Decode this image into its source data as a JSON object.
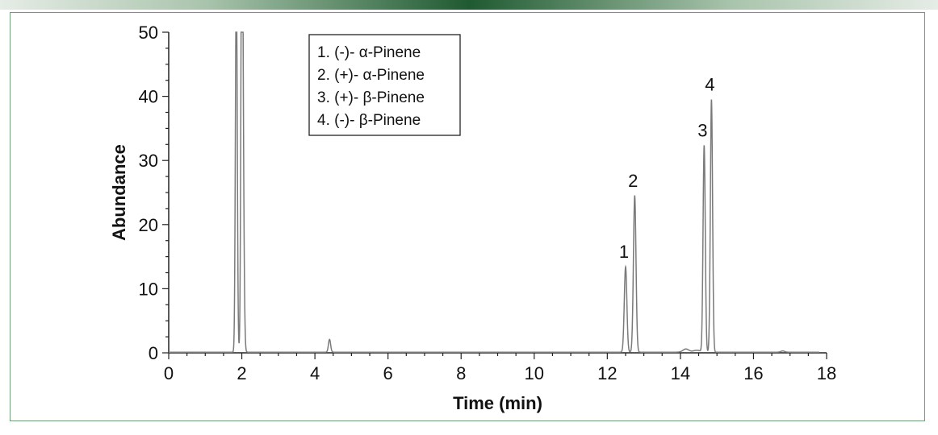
{
  "chart_data": {
    "type": "line",
    "title": "",
    "xlabel": "Time (min)",
    "ylabel": "Abundance",
    "xlim": [
      0,
      18
    ],
    "ylim": [
      0,
      50
    ],
    "x_ticks": [
      0,
      2,
      4,
      6,
      8,
      10,
      12,
      14,
      16,
      18
    ],
    "y_ticks": [
      0,
      10,
      20,
      30,
      40,
      50
    ],
    "grid": false,
    "legend_position": "top-center",
    "line_color": "#7a7a7a",
    "baseline": 0.1,
    "peaks": [
      {
        "label": "",
        "rt": 1.85,
        "height": 60,
        "width": 0.025
      },
      {
        "label": "",
        "rt": 2.0,
        "height": 60,
        "width": 0.025
      },
      {
        "label": "",
        "rt": 2.03,
        "height": 29,
        "width": 0.03
      },
      {
        "label": "",
        "rt": 4.4,
        "height": 2.0,
        "width": 0.03
      },
      {
        "label": "1",
        "rt": 12.5,
        "height": 13.3,
        "width": 0.035
      },
      {
        "label": "2",
        "rt": 12.75,
        "height": 24.4,
        "width": 0.035
      },
      {
        "label": "",
        "rt": 14.15,
        "height": 0.5,
        "width": 0.08
      },
      {
        "label": "",
        "rt": 14.45,
        "height": 0.3,
        "width": 0.1
      },
      {
        "label": "3",
        "rt": 14.65,
        "height": 32.2,
        "width": 0.03
      },
      {
        "label": "4",
        "rt": 14.85,
        "height": 39.4,
        "width": 0.03
      },
      {
        "label": "",
        "rt": 16.8,
        "height": 0.2,
        "width": 0.05
      }
    ],
    "legend": [
      "1. (-)- α-Pinene",
      "2. (+)- α-Pinene",
      "3. (+)- β-Pinene",
      "4. (-)- β-Pinene"
    ]
  }
}
